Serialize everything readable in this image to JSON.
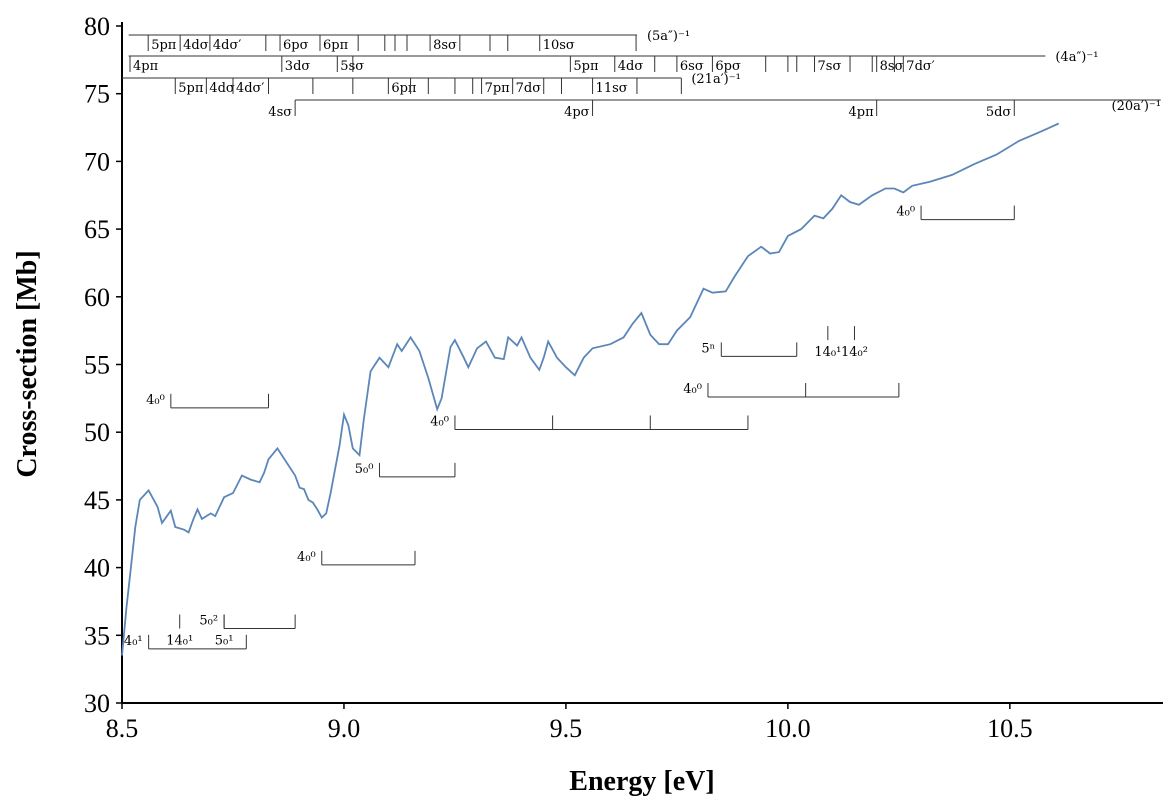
{
  "chart_data": {
    "type": "line",
    "x_label": "Energy [eV]",
    "y_label": "Cross-section [Mb]",
    "xlim": [
      8.5,
      10.845
    ],
    "ylim": [
      30,
      80
    ],
    "xticks": [
      8.5,
      {
        "value": 9,
        "label": "9.0"
      },
      9.5,
      {
        "value": 10,
        "label": "10.0"
      },
      10.5
    ],
    "yticks": [
      30,
      35,
      40,
      45,
      50,
      55,
      60,
      65,
      70,
      75,
      80
    ],
    "color": "#5b86b8",
    "x": [
      8.5,
      8.51,
      8.52,
      8.53,
      8.54,
      8.56,
      8.58,
      8.59,
      8.61,
      8.62,
      8.64,
      8.65,
      8.66,
      8.67,
      8.68,
      8.7,
      8.71,
      8.73,
      8.75,
      8.77,
      8.79,
      8.81,
      8.82,
      8.83,
      8.85,
      8.87,
      8.89,
      8.9,
      8.91,
      8.92,
      8.93,
      8.94,
      8.95,
      8.96,
      8.97,
      8.99,
      9.0,
      9.01,
      9.02,
      9.035,
      9.045,
      9.06,
      9.08,
      9.1,
      9.12,
      9.13,
      9.15,
      9.17,
      9.19,
      9.21,
      9.22,
      9.24,
      9.25,
      9.27,
      9.28,
      9.3,
      9.32,
      9.34,
      9.36,
      9.37,
      9.39,
      9.4,
      9.42,
      9.44,
      9.45,
      9.46,
      9.48,
      9.5,
      9.52,
      9.54,
      9.56,
      9.6,
      9.63,
      9.65,
      9.67,
      9.69,
      9.71,
      9.73,
      9.75,
      9.78,
      9.81,
      9.83,
      9.86,
      9.88,
      9.91,
      9.94,
      9.96,
      9.98,
      10.0,
      10.03,
      10.06,
      10.08,
      10.1,
      10.12,
      10.14,
      10.16,
      10.19,
      10.22,
      10.24,
      10.26,
      10.28,
      10.32,
      10.37,
      10.42,
      10.47,
      10.52,
      10.57,
      10.61
    ],
    "values": [
      33.5,
      37,
      40,
      43,
      45,
      45.7,
      44.5,
      43.3,
      44.2,
      43.0,
      42.8,
      42.6,
      43.5,
      44.3,
      43.6,
      44.0,
      43.8,
      45.2,
      45.5,
      46.8,
      46.5,
      46.3,
      47.0,
      48.0,
      48.8,
      47.8,
      46.8,
      45.9,
      45.8,
      45.0,
      44.8,
      44.3,
      43.7,
      44.0,
      45.5,
      49.0,
      51.3,
      50.5,
      48.8,
      48.3,
      51.0,
      54.5,
      55.5,
      54.8,
      56.5,
      56.0,
      57.0,
      56.0,
      54.0,
      51.7,
      52.5,
      56.3,
      56.8,
      55.5,
      54.8,
      56.2,
      56.7,
      55.5,
      55.4,
      57.0,
      56.4,
      57.0,
      55.5,
      54.6,
      55.5,
      56.7,
      55.5,
      54.8,
      54.2,
      55.5,
      56.2,
      56.5,
      57.0,
      58.0,
      58.8,
      57.2,
      56.5,
      56.5,
      57.5,
      58.5,
      60.6,
      60.3,
      60.4,
      61.5,
      63.0,
      63.7,
      63.2,
      63.3,
      64.5,
      65.0,
      66.0,
      65.8,
      66.5,
      67.5,
      67.0,
      66.8,
      67.5,
      68.0,
      68.0,
      67.7,
      68.2,
      68.5,
      69.0,
      69.8,
      70.5,
      71.5,
      72.2,
      72.8
    ],
    "assignments": [
      {
        "label": "(5a″)⁻¹",
        "start": 8.515,
        "end": 9.66,
        "states": [
          {
            "x": 8.559,
            "label": "5pπ"
          },
          {
            "x": 8.631,
            "label": "4dσ"
          },
          {
            "x": 8.698,
            "label": "4dσ′"
          },
          {
            "x": 8.856,
            "label": "6pσ"
          },
          {
            "x": 8.946,
            "label": "6pπ"
          },
          {
            "x": 9.194,
            "label": "8sσ"
          },
          {
            "x": 9.441,
            "label": "10sσ"
          }
        ],
        "ticks": [
          8.824,
          9.032,
          9.092,
          9.115,
          9.142,
          9.261,
          9.329,
          9.369,
          9.658
        ]
      },
      {
        "label": "(4a″)⁻¹",
        "start": 8.515,
        "end": 10.58,
        "states": [
          {
            "x": 8.518,
            "label": "4pπ"
          },
          {
            "x": 8.86,
            "label": "3dσ"
          },
          {
            "x": 8.985,
            "label": "5sσ"
          },
          {
            "x": 9.51,
            "label": "5pπ"
          },
          {
            "x": 9.61,
            "label": "4dσ"
          },
          {
            "x": 9.75,
            "label": "6sσ"
          },
          {
            "x": 9.83,
            "label": "6pσ"
          },
          {
            "x": 10.06,
            "label": "7sσ"
          },
          {
            "x": 10.2,
            "label": "8sσ"
          },
          {
            "x": 10.26,
            "label": "7dσ′"
          }
        ],
        "ticks": [
          9.02,
          9.7,
          9.95,
          10.0,
          10.02,
          10.14,
          10.19,
          10.24
        ]
      },
      {
        "label": "(21a′)⁻¹",
        "start": 8.5,
        "end": 9.76,
        "states": [
          {
            "x": 8.62,
            "label": "5pπ"
          },
          {
            "x": 8.69,
            "label": "4dσ"
          },
          {
            "x": 8.75,
            "label": "4dσ′"
          },
          {
            "x": 9.1,
            "label": "6pπ"
          },
          {
            "x": 9.31,
            "label": "7pπ"
          },
          {
            "x": 9.38,
            "label": "7dσ"
          },
          {
            "x": 9.56,
            "label": "11sσ"
          }
        ],
        "ticks": [
          8.83,
          8.93,
          9.02,
          9.15,
          9.19,
          9.25,
          9.29,
          9.45,
          9.49,
          9.66,
          9.76
        ]
      },
      {
        "label": "(20a′)⁻¹",
        "start": 8.89,
        "end": 10.84,
        "states": [
          {
            "x": 8.89,
            "label": "4sσ"
          },
          {
            "x": 9.56,
            "label": "4pσ"
          },
          {
            "x": 10.2,
            "label": "4pπ"
          },
          {
            "x": 10.51,
            "label": "5dσ"
          }
        ],
        "ticks": []
      }
    ],
    "progressions": [
      {
        "label": "4₀⁰",
        "y": 51.8,
        "ticks": [
          8.61,
          8.83
        ]
      },
      {
        "label": "5₀⁰",
        "y": 46.7,
        "ticks": [
          9.08,
          9.25
        ]
      },
      {
        "label": "4₀⁰",
        "y": 40.2,
        "ticks": [
          8.95,
          9.16
        ]
      },
      {
        "label": "4₀⁰",
        "y": 50.2,
        "ticks": [
          9.25,
          9.47,
          9.69,
          9.91
        ]
      },
      {
        "label": "4₀⁰",
        "y": 52.6,
        "ticks": [
          9.82,
          10.04,
          10.25
        ]
      },
      {
        "label": "5ⁿ",
        "y": 55.6,
        "ticks": [
          9.85,
          10.02
        ]
      },
      {
        "label": "4₀⁰",
        "y": 65.7,
        "ticks": [
          10.3,
          10.51
        ]
      },
      {
        "label": "4₀¹",
        "y": 34.0,
        "ticks": [
          8.56,
          8.78
        ]
      },
      {
        "label": "5₀²",
        "y": 35.5,
        "ticks": [
          8.73,
          8.89
        ]
      },
      {
        "label": "14₀¹",
        "y": 56.8,
        "ticks": [
          10.09
        ]
      },
      {
        "label": "14₀²",
        "y": 56.8,
        "ticks": [
          10.15
        ]
      },
      {
        "label": "14₀¹",
        "y": 35.5,
        "ticks": [
          8.63
        ]
      },
      {
        "label": "5₀¹",
        "y": 35.5,
        "ticks": [
          8.73
        ]
      }
    ]
  }
}
